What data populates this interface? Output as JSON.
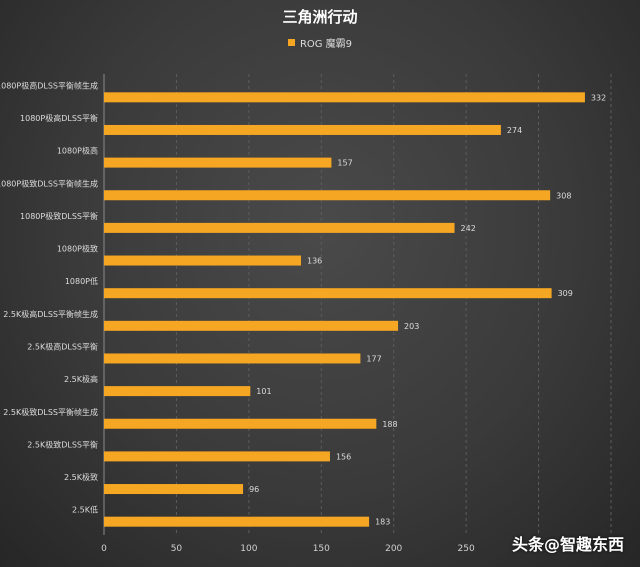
{
  "chart_data": {
    "type": "bar",
    "orientation": "horizontal",
    "title": "三角洲行动",
    "series": [
      {
        "name": "ROG 魔霸9",
        "color": "#F5A623",
        "values": [
          332,
          274,
          157,
          308,
          242,
          136,
          309,
          203,
          177,
          101,
          188,
          156,
          96,
          183
        ]
      }
    ],
    "categories": [
      "1080P极高DLSS平衡帧生成",
      "1080P极高DLSS平衡",
      "1080P极高",
      "1080P极致DLSS平衡帧生成",
      "1080P极致DLSS平衡",
      "1080P极致",
      "1080P低",
      "2.5K极高DLSS平衡帧生成",
      "2.5K极高DLSS平衡",
      "2.5K极高",
      "2.5K极致DLSS平衡帧生成",
      "2.5K极致DLSS平衡",
      "2.5K极致",
      "2.5K低"
    ],
    "xlim": [
      0,
      350
    ],
    "xticks": [
      0,
      50,
      100,
      150,
      200,
      250
    ],
    "grid": true,
    "legend_position": "top-center"
  },
  "watermark": "头条@智趣东西"
}
